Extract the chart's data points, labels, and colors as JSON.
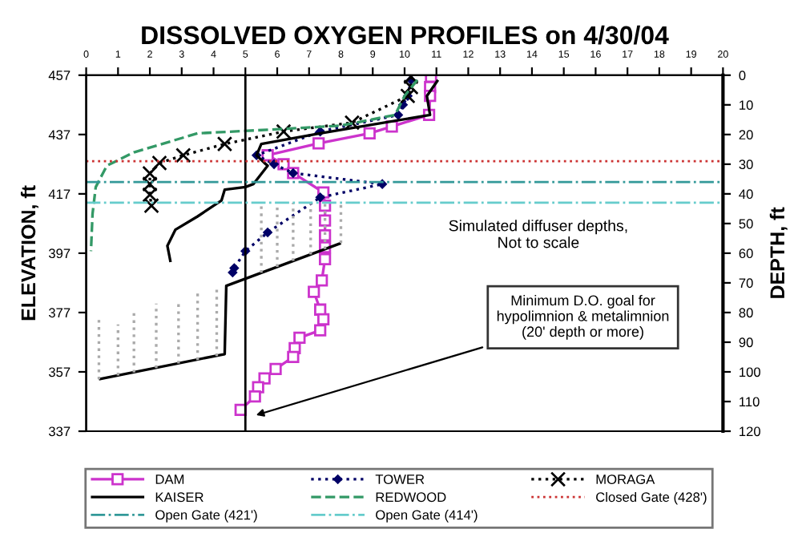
{
  "chart_data": {
    "type": "line",
    "title": "DISSOLVED OXYGEN PROFILES on 4/30/04",
    "ylabel": "ELEVATION, ft",
    "y2label": "DEPTH, ft",
    "xlim": [
      0,
      20
    ],
    "xticks": [
      0,
      1,
      2,
      3,
      4,
      5,
      6,
      7,
      8,
      9,
      10,
      11,
      12,
      13,
      14,
      15,
      16,
      17,
      18,
      19,
      20
    ],
    "ylim": [
      337,
      457
    ],
    "yticks": [
      337,
      357,
      377,
      397,
      417,
      437,
      457
    ],
    "y2lim": [
      120,
      0
    ],
    "y2ticks": [
      0,
      10,
      20,
      30,
      40,
      50,
      60,
      70,
      80,
      90,
      100,
      110,
      120
    ],
    "grid": false,
    "legend": "bottom",
    "series": [
      {
        "name": "DAM",
        "color": "#cc33cc",
        "marker": "square",
        "line_style": "solid",
        "x": [
          10.83,
          10.8,
          10.8,
          10.77,
          9.6,
          8.9,
          7.3,
          5.7,
          6.2,
          6.5,
          7.45,
          7.5,
          7.5,
          7.5,
          7.5,
          7.5,
          7.4,
          7.15,
          7.35,
          7.45,
          7.35,
          6.7,
          6.55,
          6.5,
          5.95,
          5.6,
          5.4,
          5.3,
          4.85
        ],
        "values": [
          456.5,
          453,
          450,
          443.6,
          439.7,
          437.4,
          434,
          430,
          427,
          424,
          417.5,
          413,
          408,
          403,
          399,
          395,
          387.8,
          384,
          378,
          374.7,
          371,
          368.5,
          365,
          362,
          358,
          354.8,
          351.8,
          348.7,
          344.2
        ]
      },
      {
        "name": "TOWER",
        "color": "#000066",
        "marker": "diamond",
        "line_style": "dotted",
        "x": [
          10.2,
          10.1,
          9.95,
          9.8,
          7.35,
          5.35,
          5.9,
          6.5,
          9.3,
          7.35,
          5.7,
          5.0,
          4.65,
          4.6
        ],
        "values": [
          455.4,
          450,
          447,
          443.6,
          438,
          430,
          427,
          424,
          420.3,
          415.8,
          404,
          397.7,
          392,
          390.5
        ]
      },
      {
        "name": "MORAGA",
        "color": "#000000",
        "marker": "cross",
        "line_style": "dotted",
        "x": [
          10.2,
          10.2,
          10.1,
          8.35,
          6.2,
          4.35,
          3.05,
          2.3,
          2.0,
          2.0,
          2.0,
          2.05
        ],
        "values": [
          456.5,
          453,
          450,
          441,
          438,
          433.8,
          430,
          427.4,
          423.9,
          420.3,
          416.7,
          413
        ]
      },
      {
        "name": "KAISER",
        "color": "#000000",
        "marker": "none",
        "line_style": "solid",
        "x": [
          11.05,
          10.7,
          10.8,
          7.35,
          5.5,
          5.35,
          5.6,
          5.7,
          5.25,
          5.0,
          4.35,
          4.25,
          3.5,
          2.8,
          2.55,
          2.65,
          null,
          8.0,
          4.4,
          4.35,
          0.4
        ],
        "values": [
          455.4,
          450,
          443.6,
          437.4,
          433.8,
          430,
          427.4,
          426.5,
          420.3,
          419.3,
          418.4,
          414.8,
          409.4,
          404.9,
          399.5,
          394,
          null,
          400.4,
          386,
          363,
          354.5
        ]
      },
      {
        "name": "REDWOOD",
        "color": "#339966",
        "marker": "none",
        "line_style": "dashed",
        "x": [
          10.4,
          10.0,
          9.7,
          8.0,
          5.7,
          3.5,
          1.5,
          0.65,
          0.3,
          0.2,
          0.15
        ],
        "values": [
          455.4,
          450,
          443.6,
          440,
          438.6,
          437.4,
          431,
          426.5,
          419.3,
          410.3,
          397.7
        ]
      },
      {
        "color": "#aaaaaa",
        "marker": "none",
        "line_style": "dotted",
        "x": [
          0.4,
          0.4,
          null,
          1.0,
          1.0,
          null,
          1.5,
          1.5,
          null,
          2.2,
          2.2,
          null,
          2.9,
          2.9,
          null,
          3.5,
          3.5,
          null,
          4.1,
          4.1,
          null,
          5.5,
          5.5,
          null,
          6.0,
          6.0,
          null,
          6.5,
          6.5,
          null,
          7.05,
          7.05,
          null,
          7.5,
          7.5,
          null,
          8.0,
          8.0
        ],
        "values": [
          354.5,
          375,
          null,
          355.8,
          373,
          null,
          356.8,
          377.5,
          null,
          358.3,
          380,
          null,
          359.8,
          381,
          null,
          361,
          383.5,
          null,
          362.3,
          386,
          null,
          390.4,
          414,
          null,
          392.4,
          414,
          null,
          394.4,
          414,
          null,
          396.6,
          414,
          null,
          398.4,
          414,
          null,
          400.4,
          414
        ]
      }
    ],
    "ref_lines": [
      {
        "axis": "x",
        "value": 5,
        "color": "#000000",
        "line_style": "solid"
      },
      {
        "axis": "y",
        "value": 428,
        "label": "Closed Gate (428')",
        "color": "#cc3333",
        "line_style": "dotted"
      },
      {
        "axis": "y",
        "value": 421,
        "label": "Open Gate (421')",
        "color": "#339999",
        "line_style": "dashdot"
      },
      {
        "axis": "y",
        "value": 414,
        "label": "Open Gate (414')",
        "color": "#66cccc",
        "line_style": "dashdot"
      }
    ],
    "annotations": [
      "Simulated diffuser depths,\nNot to scale",
      {
        "text": "Minimum D.O. goal for\nhypolimnion & metalimnion\n(20' depth or more)",
        "x": 5.2,
        "y": 342
      }
    ]
  }
}
